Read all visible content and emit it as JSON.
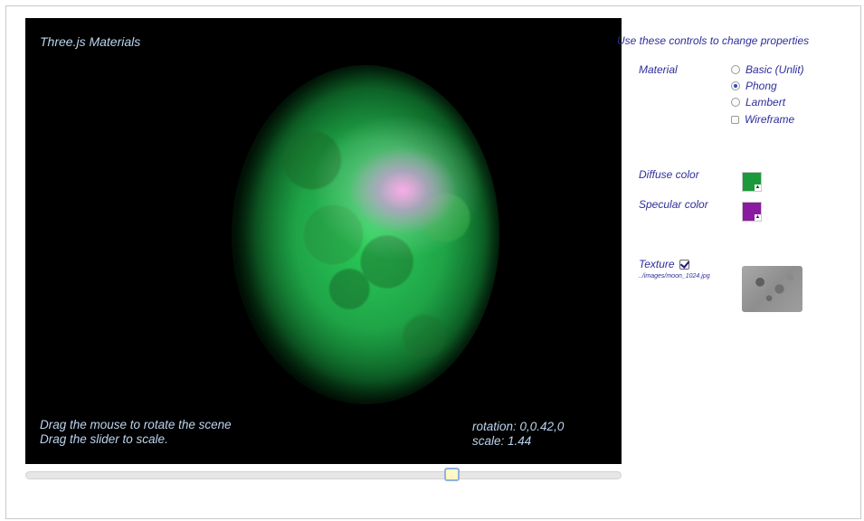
{
  "viewport": {
    "title": "Three.js Materials",
    "help_line1": "Drag the mouse to rotate the scene",
    "help_line2": "Drag the slider to scale.",
    "rotation_text": "rotation: 0,0.42,0",
    "scale_text": "scale: 1.44",
    "background": "#000000",
    "sphere_color": "#22c04f",
    "highlight_color": "#f4a8ee"
  },
  "slider": {
    "value_fraction": 0.72,
    "thumb_color": "#fff8c6",
    "thumb_border": "#8fb2de"
  },
  "controls": {
    "heading": "Use these controls to change properties",
    "material_label": "Material",
    "material_options": [
      "Basic (Unlit)",
      "Phong",
      "Lambert"
    ],
    "material_selected": "Phong",
    "wireframe_label": "Wireframe",
    "wireframe_checked": false,
    "diffuse_label": "Diffuse color",
    "diffuse_color": "#1a9a3a",
    "specular_label": "Specular color",
    "specular_color": "#8a1aa0",
    "texture_label": "Texture",
    "texture_enabled": true,
    "texture_path": "../images/moon_1024.jpg",
    "text_color": "#2e2e9c"
  }
}
